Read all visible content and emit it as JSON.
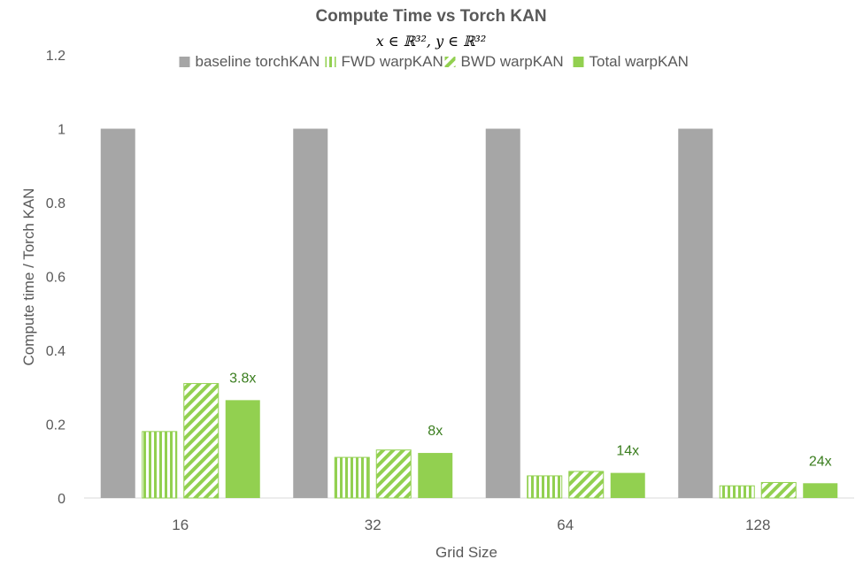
{
  "chart_data": {
    "type": "bar",
    "title": "Compute Time vs Torch KAN",
    "subtitle": "x ∈ ℝ³², y ∈ ℝ³²",
    "xlabel": "Grid Size",
    "ylabel": "Compute time / Torch KAN",
    "categories": [
      "16",
      "32",
      "64",
      "128"
    ],
    "ylim": [
      0,
      1.2
    ],
    "yticks": [
      "0",
      "0.2",
      "0.4",
      "0.6",
      "0.8",
      "1",
      "1.2"
    ],
    "grid": false,
    "legend_position": "top",
    "series": [
      {
        "name": "baseline torchKAN",
        "values": [
          1,
          1,
          1,
          1
        ],
        "color": "#a6a6a6",
        "pattern": "solid"
      },
      {
        "name": "FWD warpKAN",
        "values": [
          0.18,
          0.11,
          0.06,
          0.033
        ],
        "color": "#92d050",
        "pattern": "vertical-stripes"
      },
      {
        "name": "BWD warpKAN",
        "values": [
          0.31,
          0.13,
          0.072,
          0.042
        ],
        "color": "#92d050",
        "pattern": "diagonal-stripes"
      },
      {
        "name": "Total warpKAN",
        "values": [
          0.265,
          0.122,
          0.068,
          0.04
        ],
        "color": "#92d050",
        "pattern": "solid"
      }
    ],
    "annotations": [
      "3.8x",
      "8x",
      "14x",
      "24x"
    ],
    "annotation_color": "#3a7d1e"
  }
}
